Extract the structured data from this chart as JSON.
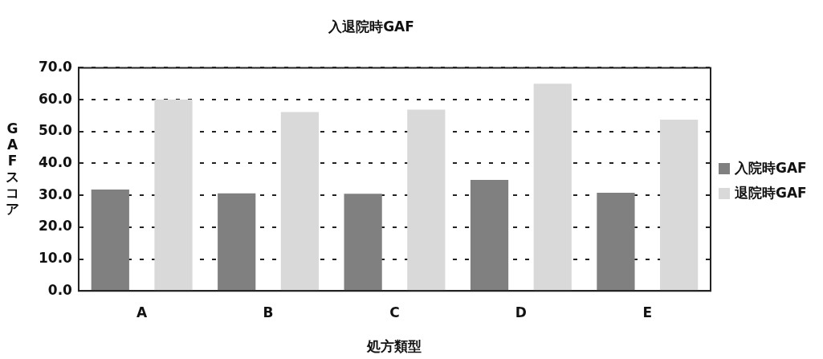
{
  "chart_data": {
    "type": "bar",
    "title": "入退院時GAF",
    "xlabel": "処方類型",
    "ylabel": "GAFスコア",
    "categories": [
      "A",
      "B",
      "C",
      "D",
      "E"
    ],
    "series": [
      {
        "name": "入院時GAF",
        "color": "#808080",
        "values": [
          31.8,
          30.6,
          30.5,
          34.8,
          30.8
        ]
      },
      {
        "name": "退院時GAF",
        "color": "#d9d9d9",
        "values": [
          60.0,
          56.1,
          56.9,
          65.0,
          53.7
        ]
      }
    ],
    "ylim": [
      0,
      70
    ],
    "yticks": [
      {
        "value": 0,
        "label": "0.0"
      },
      {
        "value": 10,
        "label": "10.0"
      },
      {
        "value": 20,
        "label": "20.0"
      },
      {
        "value": 30,
        "label": "30.0"
      },
      {
        "value": 40,
        "label": "40.0"
      },
      {
        "value": 50,
        "label": "50.0"
      },
      {
        "value": 60,
        "label": "60.0"
      },
      {
        "value": 70,
        "label": "70.0"
      }
    ],
    "grid": "y",
    "legend": "right"
  }
}
